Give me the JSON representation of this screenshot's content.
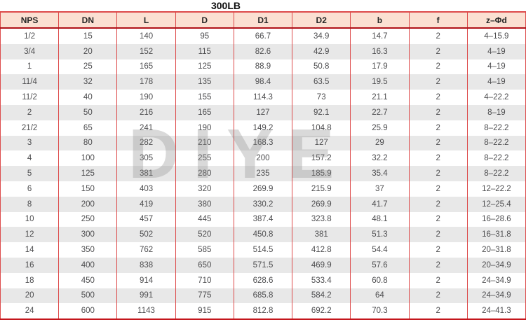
{
  "title": "300LB",
  "watermark": {
    "text": "DIYE"
  },
  "colors": {
    "header_bg": "#fbe0d2",
    "border_red": "#dd4a4a",
    "header_underline": "#b01218",
    "bottom_border": "#c4161c",
    "row_alt_bg": "#e8e8e8",
    "text": "#4d4d4f",
    "watermark_gray": "#8c8c8c"
  },
  "table": {
    "headers": [
      "NPS",
      "DN",
      "L",
      "D",
      "D1",
      "D2",
      "b",
      "f",
      "z–Φd"
    ],
    "rows": [
      [
        "1/2",
        "15",
        "140",
        "95",
        "66.7",
        "34.9",
        "14.7",
        "2",
        "4–15.9"
      ],
      [
        "3/4",
        "20",
        "152",
        "115",
        "82.6",
        "42.9",
        "16.3",
        "2",
        "4–19"
      ],
      [
        "1",
        "25",
        "165",
        "125",
        "88.9",
        "50.8",
        "17.9",
        "2",
        "4–19"
      ],
      [
        "11/4",
        "32",
        "178",
        "135",
        "98.4",
        "63.5",
        "19.5",
        "2",
        "4–19"
      ],
      [
        "11/2",
        "40",
        "190",
        "155",
        "114.3",
        "73",
        "21.1",
        "2",
        "4–22.2"
      ],
      [
        "2",
        "50",
        "216",
        "165",
        "127",
        "92.1",
        "22.7",
        "2",
        "8–19"
      ],
      [
        "21/2",
        "65",
        "241",
        "190",
        "149.2",
        "104.8",
        "25.9",
        "2",
        "8–22.2"
      ],
      [
        "3",
        "80",
        "282",
        "210",
        "168.3",
        "127",
        "29",
        "2",
        "8–22.2"
      ],
      [
        "4",
        "100",
        "305",
        "255",
        "200",
        "157.2",
        "32.2",
        "2",
        "8–22.2"
      ],
      [
        "5",
        "125",
        "381",
        "280",
        "235",
        "185.9",
        "35.4",
        "2",
        "8–22.2"
      ],
      [
        "6",
        "150",
        "403",
        "320",
        "269.9",
        "215.9",
        "37",
        "2",
        "12–22.2"
      ],
      [
        "8",
        "200",
        "419",
        "380",
        "330.2",
        "269.9",
        "41.7",
        "2",
        "12–25.4"
      ],
      [
        "10",
        "250",
        "457",
        "445",
        "387.4",
        "323.8",
        "48.1",
        "2",
        "16–28.6"
      ],
      [
        "12",
        "300",
        "502",
        "520",
        "450.8",
        "381",
        "51.3",
        "2",
        "16–31.8"
      ],
      [
        "14",
        "350",
        "762",
        "585",
        "514.5",
        "412.8",
        "54.4",
        "2",
        "20–31.8"
      ],
      [
        "16",
        "400",
        "838",
        "650",
        "571.5",
        "469.9",
        "57.6",
        "2",
        "20–34.9"
      ],
      [
        "18",
        "450",
        "914",
        "710",
        "628.6",
        "533.4",
        "60.8",
        "2",
        "24–34.9"
      ],
      [
        "20",
        "500",
        "991",
        "775",
        "685.8",
        "584.2",
        "64",
        "2",
        "24–34.9"
      ],
      [
        "24",
        "600",
        "1143",
        "915",
        "812.8",
        "692.2",
        "70.3",
        "2",
        "24–41.3"
      ]
    ]
  }
}
